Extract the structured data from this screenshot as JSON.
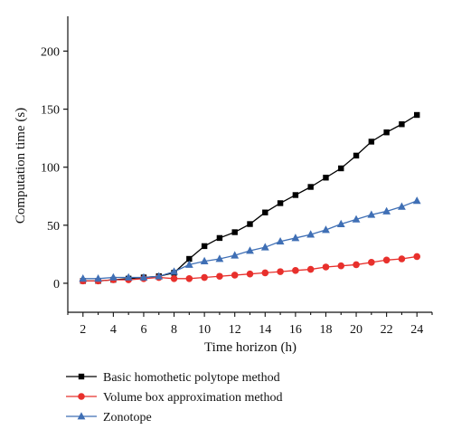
{
  "chart_data": {
    "type": "line",
    "xlabel": "Time horizon (h)",
    "ylabel": "Computation time (s)",
    "xlim": [
      1,
      25
    ],
    "ylim": [
      -25,
      230
    ],
    "xticks": [
      2,
      4,
      6,
      8,
      10,
      12,
      14,
      16,
      18,
      20,
      22,
      24
    ],
    "yticks": [
      0,
      50,
      100,
      150,
      200
    ],
    "grid": false,
    "legend_position": "bottom",
    "x": [
      2,
      3,
      4,
      5,
      6,
      7,
      8,
      9,
      10,
      11,
      12,
      13,
      14,
      15,
      16,
      17,
      18,
      19,
      20,
      21,
      22,
      23,
      24
    ],
    "series": [
      {
        "name": "Basic homothetic polytope method",
        "color": "#000000",
        "marker": "square",
        "values": [
          2,
          2,
          3,
          4,
          5,
          6,
          9,
          21,
          32,
          39,
          44,
          51,
          61,
          69,
          76,
          83,
          91,
          99,
          110,
          122,
          130,
          137,
          145
        ]
      },
      {
        "name": "Volume box approximation method",
        "color": "#e8302c",
        "marker": "circle",
        "values": [
          2,
          2,
          3,
          3,
          4,
          5,
          4,
          4,
          5,
          6,
          7,
          8,
          9,
          10,
          11,
          12,
          14,
          15,
          16,
          18,
          20,
          21,
          23
        ]
      },
      {
        "name": "Zonotope",
        "color": "#3f6fb5",
        "marker": "triangle",
        "values": [
          4,
          4,
          5,
          5,
          5,
          6,
          10,
          16,
          19,
          21,
          24,
          28,
          31,
          36,
          39,
          42,
          46,
          51,
          55,
          59,
          62,
          66,
          71
        ]
      }
    ]
  }
}
